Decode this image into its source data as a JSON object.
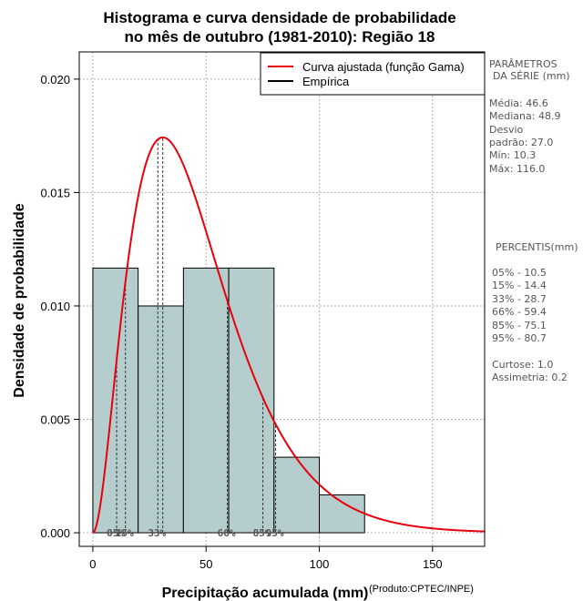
{
  "chart_data": {
    "type": "bar",
    "title": [
      "Histograma e curva densidade de probabilidade",
      "no mês de outubro (1981-2010): Região 18"
    ],
    "xlabel": "Precipitação acumulada (mm)",
    "ylabel": "Densidade de probabilidade",
    "credit": "(Produto:CPTEC/INPE)",
    "xlim": [
      -6,
      173
    ],
    "ylim": [
      -0.0006,
      0.0212
    ],
    "x_ticks": [
      0,
      50,
      100,
      150
    ],
    "y_ticks": [
      0.0,
      0.005,
      0.01,
      0.015,
      0.02
    ],
    "y_tick_labels": [
      "0.000",
      "0.005",
      "0.010",
      "0.015",
      "0.020"
    ],
    "grid": true,
    "bin_edges": [
      0,
      20,
      40,
      60,
      80,
      100,
      120
    ],
    "values": [
      0.01167,
      0.01,
      0.01167,
      0.01167,
      0.00333,
      0.00167
    ],
    "gamma_fit": {
      "shape": 2.98,
      "scale": 15.6
    },
    "percentiles": [
      {
        "label": "05%",
        "x": 10.5
      },
      {
        "label": "15%",
        "x": 14.4
      },
      {
        "label": "33%",
        "x": 28.7
      },
      {
        "label": "66%",
        "x": 59.4
      },
      {
        "label": "85%",
        "x": 75.1
      },
      {
        "label": "95%",
        "x": 80.7
      }
    ],
    "legend": [
      {
        "name": "Curva ajustada (função Gama)",
        "color": "#e8000b"
      },
      {
        "name": "Empírica",
        "color": "#000000"
      }
    ],
    "legend_position": "top-right",
    "colors": {
      "bars": "#b5cdcd",
      "curve": "#e8000b",
      "grid": "#b0b0b0"
    }
  },
  "side_panel": {
    "param_title_1": "PARÂMETROS",
    "param_title_2": "DA SÉRIE (mm)",
    "stats": [
      "Média:  46.6",
      "Mediana:  48.9",
      "Desvio",
      "padrão:  27.0",
      "Mín:  10.3",
      "Máx:  116.0"
    ],
    "percentis_title": "PERCENTIS(mm)",
    "percentis": [
      "05% -   10.5",
      "15% -   14.4",
      "33% -   28.7",
      "66% -   59.4",
      "85% -   75.1",
      "95% -   80.7"
    ],
    "extra": [
      "Curtose:  1.0",
      "Assimetria:  0.2"
    ]
  }
}
